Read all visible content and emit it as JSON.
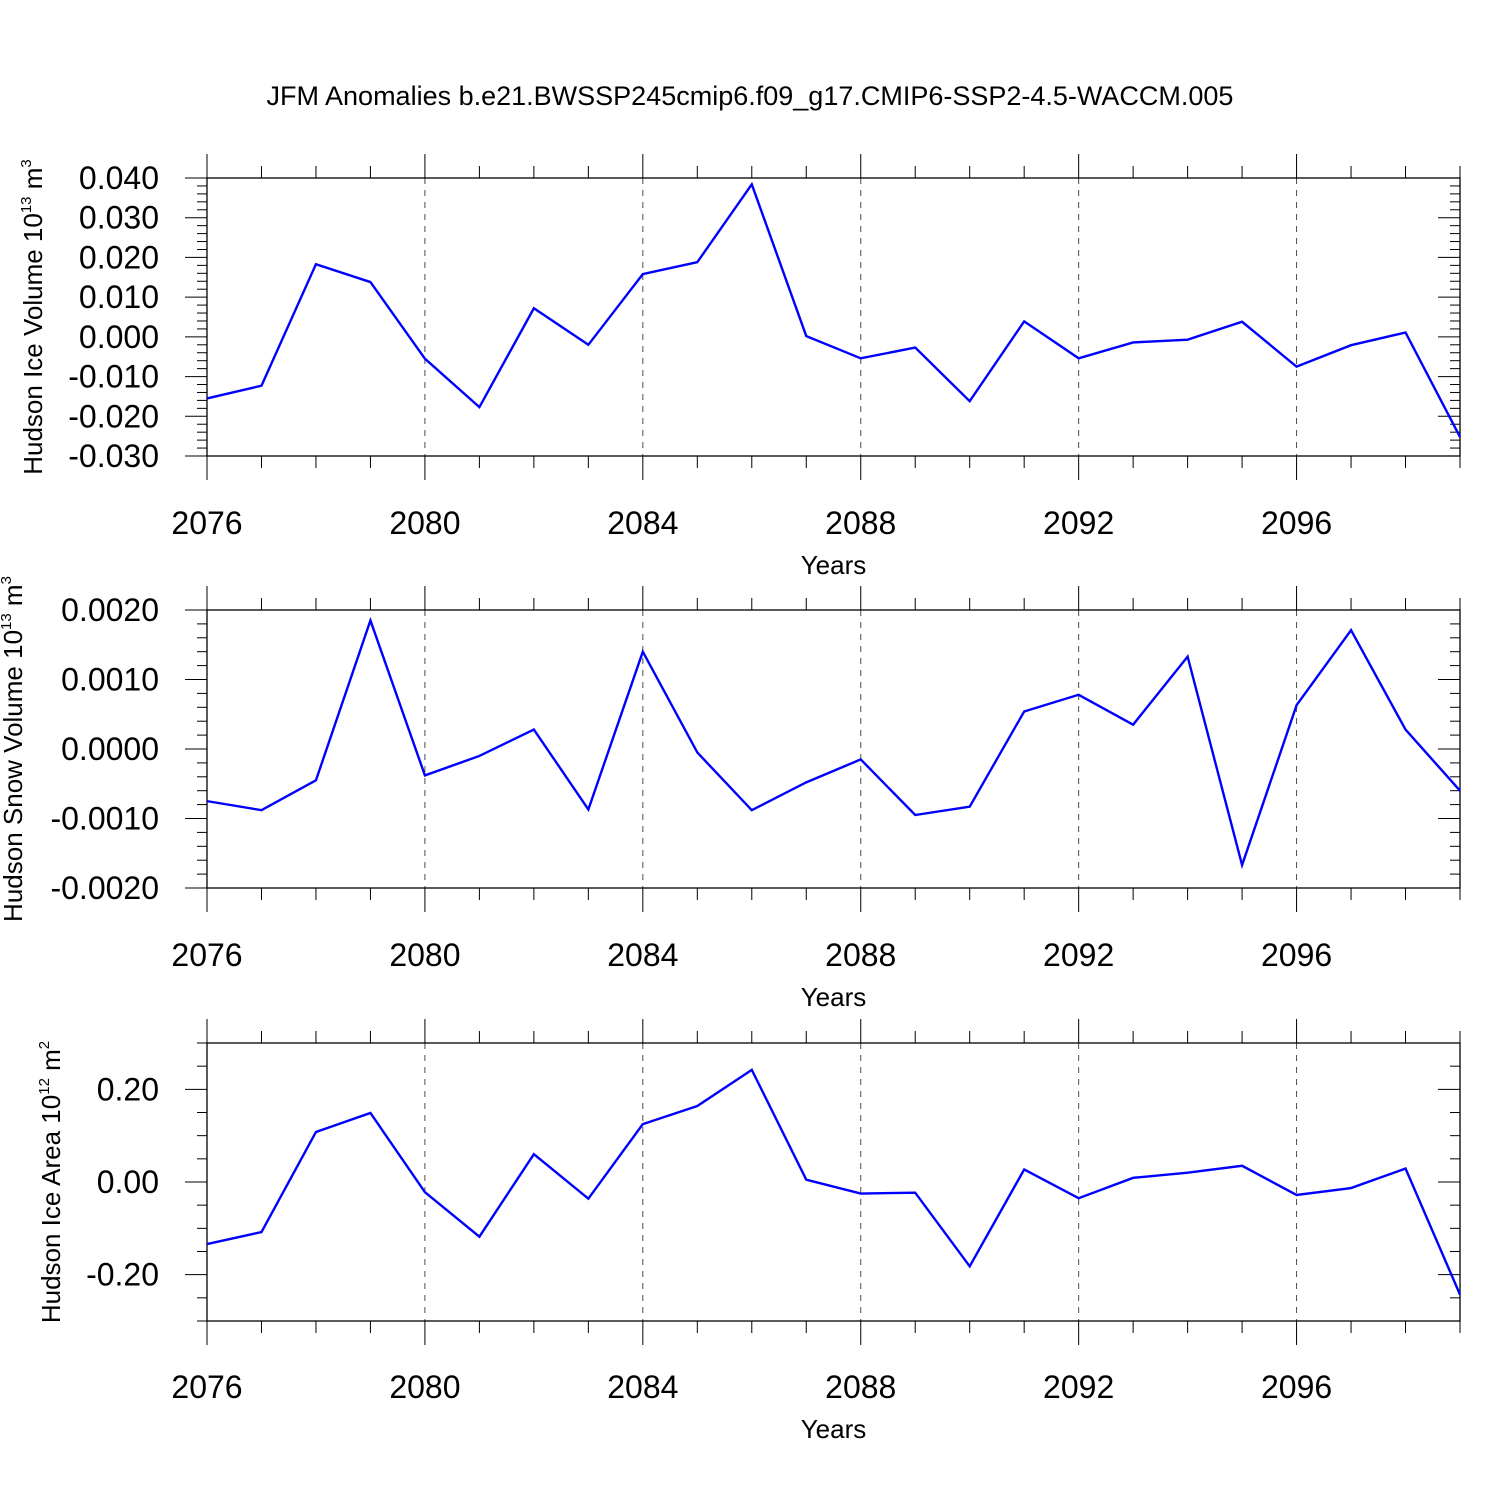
{
  "title": "JFM Anomalies b.e21.BWSSP245cmip6.f09_g17.CMIP6-SSP2-4.5-WACCM.005",
  "colors": {
    "line": "#0000ff",
    "axis": "#000000",
    "grid": "#000000"
  },
  "chart_data": [
    {
      "type": "line",
      "ylabel": {
        "text": "Hudson Ice Volume 10",
        "exp": "13",
        "unit": " m",
        "unit_exp": "3"
      },
      "xlabel": "Years",
      "xlim": [
        2076,
        2099
      ],
      "ylim": [
        -0.03,
        0.04
      ],
      "xticks": [
        "2076",
        "2080",
        "2084",
        "2088",
        "2092",
        "2096"
      ],
      "yticks": [
        "-0.030",
        "-0.020",
        "-0.010",
        "0.000",
        "0.010",
        "0.020",
        "0.030",
        "0.040"
      ],
      "grid": "x dashed",
      "x": [
        2076,
        2077,
        2078,
        2079,
        2080,
        2081,
        2082,
        2083,
        2084,
        2085,
        2086,
        2087,
        2088,
        2089,
        2090,
        2091,
        2092,
        2093,
        2094,
        2095,
        2096,
        2097,
        2098,
        2099
      ],
      "series": [
        {
          "values": [
            -0.0155,
            -0.0123,
            0.0183,
            0.0138,
            -0.0055,
            -0.0177,
            0.0072,
            -0.002,
            0.0158,
            0.0188,
            0.0384,
            0.0002,
            -0.0054,
            -0.0027,
            -0.0162,
            0.0039,
            -0.0054,
            -0.0014,
            -0.0007,
            0.0038,
            -0.0075,
            -0.0021,
            0.0011,
            -0.0252
          ]
        }
      ]
    },
    {
      "type": "line",
      "ylabel": {
        "text": "Hudson Snow Volume 10",
        "exp": "13",
        "unit": " m",
        "unit_exp": "3"
      },
      "xlabel": "Years",
      "xlim": [
        2076,
        2099
      ],
      "ylim": [
        -0.002,
        0.002
      ],
      "xticks": [
        "2076",
        "2080",
        "2084",
        "2088",
        "2092",
        "2096"
      ],
      "yticks": [
        "-0.0020",
        "-0.0010",
        "0.0000",
        "0.0010",
        "0.0020"
      ],
      "grid": "x dashed",
      "x": [
        2076,
        2077,
        2078,
        2079,
        2080,
        2081,
        2082,
        2083,
        2084,
        2085,
        2086,
        2087,
        2088,
        2089,
        2090,
        2091,
        2092,
        2093,
        2094,
        2095,
        2096,
        2097,
        2098,
        2099
      ],
      "series": [
        {
          "values": [
            -0.00075,
            -0.00088,
            -0.00045,
            0.00185,
            -0.00038,
            -0.0001,
            0.00028,
            -0.00087,
            0.0014,
            -5e-05,
            -0.00088,
            -0.00048,
            -0.00015,
            -0.00095,
            -0.00083,
            0.00054,
            0.00078,
            0.00035,
            0.00133,
            -0.00167,
            0.00063,
            0.00171,
            0.00028,
            -0.0006
          ]
        }
      ]
    },
    {
      "type": "line",
      "ylabel": {
        "text": "Hudson Ice Area 10",
        "exp": "12",
        "unit": " m",
        "unit_exp": "2"
      },
      "xlabel": "Years",
      "xlim": [
        2076,
        2099
      ],
      "ylim": [
        -0.3,
        0.3
      ],
      "xticks": [
        "2076",
        "2080",
        "2084",
        "2088",
        "2092",
        "2096"
      ],
      "yticks": [
        "-0.20",
        "0.00",
        "0.20"
      ],
      "grid": "x dashed",
      "x": [
        2076,
        2077,
        2078,
        2079,
        2080,
        2081,
        2082,
        2083,
        2084,
        2085,
        2086,
        2087,
        2088,
        2089,
        2090,
        2091,
        2092,
        2093,
        2094,
        2095,
        2096,
        2097,
        2098,
        2099
      ],
      "series": [
        {
          "values": [
            -0.134,
            -0.108,
            0.108,
            0.149,
            -0.022,
            -0.118,
            0.06,
            -0.036,
            0.125,
            0.164,
            0.242,
            0.005,
            -0.025,
            -0.023,
            -0.182,
            0.027,
            -0.035,
            0.009,
            0.02,
            0.035,
            -0.028,
            -0.013,
            0.029,
            -0.243
          ]
        }
      ]
    }
  ]
}
